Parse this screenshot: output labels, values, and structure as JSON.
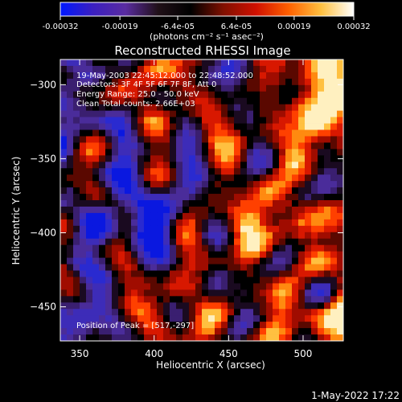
{
  "chart_data": {
    "type": "heatmap",
    "title": "Reconstructed RHESSI Image",
    "xlabel": "Heliocentric X (arcsec)",
    "ylabel": "Heliocentric Y (arcsec)",
    "xlim": [
      337,
      527
    ],
    "ylim": [
      -473,
      -283
    ],
    "x_ticks": [
      350,
      400,
      450,
      500
    ],
    "y_ticks": [
      -300,
      -350,
      -400,
      -450
    ],
    "x_tick_labels": [
      "350",
      "400",
      "450",
      "500"
    ],
    "y_tick_labels": [
      "−300",
      "−350",
      "−400",
      "−450"
    ],
    "colorbar": {
      "range": [
        -0.00032,
        0.00032
      ],
      "ticks": [
        -0.00032,
        -0.00019,
        -6.4e-05,
        6.4e-05,
        0.00019,
        0.00032
      ],
      "tick_labels": [
        "-0.00032",
        "-0.00019",
        "-6.4e-05",
        "6.4e-05",
        "0.00019",
        "0.00032"
      ],
      "unit_label": "(photons cm⁻² s⁻¹ asec⁻²)",
      "colors": [
        "#0018ff",
        "#3b1fc0",
        "#5a2ca0",
        "#201018",
        "#000000",
        "#801000",
        "#d01000",
        "#ff6000",
        "#ffc040",
        "#ffffff"
      ]
    },
    "annotations": [
      "19-May-2003 22:45:12.000 to 22:48:52.000",
      "Detectors: 3F 4F 5F 6F 7F 8F, Att 0",
      "Energy Range: 25.0 - 50.0 keV",
      "Clean    Total counts: 2.66E+03"
    ],
    "peak_label": "Position of Peak = [517,-297]",
    "peak": [
      517,
      -297
    ],
    "timestamp": "1-May-2022 17:22"
  }
}
